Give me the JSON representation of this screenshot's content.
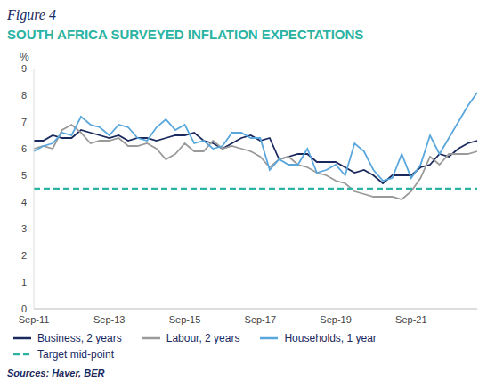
{
  "chart_data": {
    "type": "line",
    "label": "Figure 4",
    "title": "SOUTH AFRICA SURVEYED INFLATION EXPECTATIONS",
    "source": "Sources: Haver, BER",
    "y_label": "%",
    "categories": [
      "Sep-11",
      null,
      null,
      null,
      null,
      null,
      null,
      null,
      "Sep-13",
      null,
      null,
      null,
      null,
      null,
      null,
      null,
      "Sep-15",
      null,
      null,
      null,
      null,
      null,
      null,
      null,
      "Sep-17",
      null,
      null,
      null,
      null,
      null,
      null,
      null,
      "Sep-19",
      null,
      null,
      null,
      null,
      null,
      null,
      null,
      "Sep-21",
      null,
      null,
      null,
      null,
      null,
      null,
      null
    ],
    "ylim": [
      0,
      9
    ],
    "yticks": [
      0,
      1,
      2,
      3,
      4,
      5,
      6,
      7,
      8,
      9
    ],
    "grid": false,
    "legend": "bottom",
    "series": [
      {
        "name": "Business, 2 years",
        "color": "#1b2a5e",
        "line_style": "solid",
        "values": [
          6.3,
          6.3,
          6.5,
          6.4,
          6.4,
          6.7,
          6.6,
          6.5,
          6.4,
          6.5,
          6.3,
          6.4,
          6.4,
          6.3,
          6.4,
          6.5,
          6.5,
          6.6,
          6.3,
          6.2,
          6.0,
          6.2,
          6.4,
          6.5,
          6.3,
          6.4,
          5.6,
          5.7,
          5.8,
          5.8,
          5.5,
          5.5,
          5.5,
          5.3,
          5.1,
          5.2,
          5.0,
          4.7,
          5.0,
          5.0,
          5.0,
          5.3,
          5.4,
          5.8,
          5.7,
          6.0,
          6.2,
          6.3
        ]
      },
      {
        "name": "Labour, 2 years",
        "color": "#9a9a9a",
        "line_style": "solid",
        "values": [
          6.0,
          6.1,
          6.0,
          6.7,
          6.9,
          6.6,
          6.2,
          6.3,
          6.3,
          6.4,
          6.1,
          6.1,
          6.2,
          6.0,
          5.6,
          5.8,
          6.2,
          5.9,
          5.9,
          6.3,
          6.0,
          6.1,
          6.0,
          5.9,
          5.7,
          5.3,
          5.6,
          5.7,
          5.4,
          5.3,
          5.1,
          5.0,
          4.8,
          4.7,
          4.4,
          4.3,
          4.2,
          4.2,
          4.2,
          4.1,
          4.4,
          4.9,
          5.7,
          5.4,
          5.8,
          5.8,
          5.8,
          5.9
        ]
      },
      {
        "name": "Households, 1 year",
        "color": "#5aa7dd",
        "line_style": "solid",
        "values": [
          5.9,
          6.1,
          6.2,
          6.6,
          6.5,
          7.2,
          6.9,
          6.8,
          6.5,
          6.9,
          6.8,
          6.4,
          6.3,
          6.8,
          7.1,
          6.7,
          6.9,
          6.2,
          6.3,
          6.0,
          6.1,
          6.6,
          6.6,
          6.4,
          6.4,
          5.2,
          5.6,
          5.4,
          5.4,
          6.0,
          5.1,
          5.2,
          5.4,
          5.0,
          6.2,
          5.9,
          5.2,
          4.8,
          4.9,
          5.8,
          4.9,
          5.4,
          6.5,
          5.8,
          6.4,
          7.0,
          7.6,
          8.1
        ]
      },
      {
        "name": "Target mid-point",
        "color": "#2bb3a3",
        "line_style": "dashed",
        "values": [
          4.5,
          4.5,
          4.5,
          4.5,
          4.5,
          4.5,
          4.5,
          4.5,
          4.5,
          4.5,
          4.5,
          4.5,
          4.5,
          4.5,
          4.5,
          4.5,
          4.5,
          4.5,
          4.5,
          4.5,
          4.5,
          4.5,
          4.5,
          4.5,
          4.5,
          4.5,
          4.5,
          4.5,
          4.5,
          4.5,
          4.5,
          4.5,
          4.5,
          4.5,
          4.5,
          4.5,
          4.5,
          4.5,
          4.5,
          4.5,
          4.5,
          4.5,
          4.5,
          4.5,
          4.5,
          4.5,
          4.5,
          4.5
        ]
      }
    ]
  }
}
